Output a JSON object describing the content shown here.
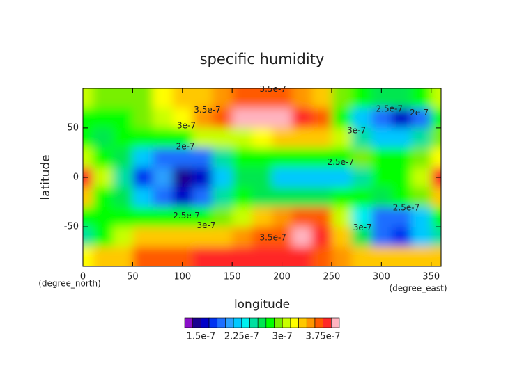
{
  "chart_data": {
    "type": "contourf",
    "title": "specific humidity",
    "xlabel": "longitude",
    "ylabel": "latitude",
    "xunit": "(degree_east)",
    "yunit": "(degree_north)",
    "xlim": [
      0,
      360
    ],
    "ylim": [
      -90,
      90
    ],
    "xticks": [
      0,
      50,
      100,
      150,
      200,
      250,
      300,
      350
    ],
    "yticks": [
      -50,
      0,
      50
    ],
    "x": [
      0,
      20,
      40,
      60,
      80,
      100,
      120,
      140,
      160,
      180,
      200,
      220,
      240,
      260,
      280,
      300,
      320,
      340,
      360
    ],
    "y": [
      80,
      60,
      40,
      20,
      0,
      -20,
      -40,
      -60,
      -80
    ],
    "values": [
      [
        3e-07,
        2.9e-07,
        2.9e-07,
        2.9e-07,
        3.2e-07,
        3.3e-07,
        3.4e-07,
        3.5e-07,
        3.6e-07,
        3.6e-07,
        3.6e-07,
        3.5e-07,
        3.4e-07,
        2.9e-07,
        2.7e-07,
        2.6e-07,
        2.6e-07,
        2.8e-07,
        3e-07
      ],
      [
        2.8e-07,
        2.7e-07,
        2.8e-07,
        2.9e-07,
        3e-07,
        3.2e-07,
        3.5e-07,
        3.7e-07,
        3.9e-07,
        4e-07,
        3.9e-07,
        3.8e-07,
        3.6e-07,
        2.8e-07,
        2.2e-07,
        1.8e-07,
        1.6e-07,
        1.9e-07,
        2.8e-07
      ],
      [
        2.7e-07,
        2.6e-07,
        2.7e-07,
        2.7e-07,
        2.8e-07,
        2.8e-07,
        3e-07,
        3.1e-07,
        3.1e-07,
        3.2e-07,
        3.3e-07,
        3.3e-07,
        3.3e-07,
        3e-07,
        2.5e-07,
        2.2e-07,
        2.1e-07,
        2.4e-07,
        2.9e-07
      ],
      [
        3.1e-07,
        2.8e-07,
        2.6e-07,
        2.2e-07,
        1.9e-07,
        1.8e-07,
        1.9e-07,
        2.5e-07,
        2.7e-07,
        2.7e-07,
        2.8e-07,
        2.8e-07,
        2.8e-07,
        2.8e-07,
        2.9e-07,
        2.7e-07,
        2.7e-07,
        2.9e-07,
        3.2e-07
      ],
      [
        3.8e-07,
        3e-07,
        2.5e-07,
        1.7e-07,
        2e-07,
        1.4e-07,
        1.5e-07,
        2.2e-07,
        2.6e-07,
        2.6e-07,
        2.2e-07,
        2.1e-07,
        2.1e-07,
        2.2e-07,
        2.5e-07,
        2.7e-07,
        2.8e-07,
        3e-07,
        3.8e-07
      ],
      [
        3.3e-07,
        2.8e-07,
        2.6e-07,
        2.1e-07,
        1.8e-07,
        1.6e-07,
        1.9e-07,
        2.4e-07,
        2.7e-07,
        2.6e-07,
        2.6e-07,
        2.6e-07,
        2.6e-07,
        2.7e-07,
        2.8e-07,
        2.6e-07,
        2.7e-07,
        2.9e-07,
        3.3e-07
      ],
      [
        2.8e-07,
        2.8e-07,
        2.8e-07,
        2.8e-07,
        2.7e-07,
        2.7e-07,
        2.8e-07,
        2.9e-07,
        3.1e-07,
        3.3e-07,
        3.5e-07,
        3.7e-07,
        3.6e-07,
        3e-07,
        2.3e-07,
        1.9e-07,
        1.8e-07,
        2.2e-07,
        2.8e-07
      ],
      [
        2.5e-07,
        2.8e-07,
        3e-07,
        3.3e-07,
        3.3e-07,
        3.3e-07,
        3.3e-07,
        3.4e-07,
        3.5e-07,
        3.6e-07,
        3.7e-07,
        3.9e-07,
        3.8e-07,
        3.4e-07,
        2.6e-07,
        1.9e-07,
        1.7e-07,
        2.1e-07,
        2.5e-07
      ],
      [
        3.2e-07,
        3.4e-07,
        3.4e-07,
        3.6e-07,
        3.7e-07,
        3.7e-07,
        3.8e-07,
        3.8e-07,
        3.8e-07,
        3.8e-07,
        3.8e-07,
        3.8e-07,
        3.7e-07,
        3.5e-07,
        3.4e-07,
        3.3e-07,
        3.3e-07,
        3.3e-07,
        3.3e-07
      ]
    ],
    "colorbar": {
      "levels": [
        1.2e-07,
        1.35e-07,
        1.5e-07,
        1.65e-07,
        1.8e-07,
        1.95e-07,
        2.1e-07,
        2.25e-07,
        2.4e-07,
        2.55e-07,
        2.7e-07,
        2.85e-07,
        3e-07,
        3.15e-07,
        3.3e-07,
        3.45e-07,
        3.6e-07,
        3.75e-07,
        3.9e-07,
        4.05e-07
      ],
      "colors": [
        "#8a10c8",
        "#1a0090",
        "#0000c8",
        "#0032f0",
        "#1e6eff",
        "#2aa0ff",
        "#00c8ff",
        "#00f0f0",
        "#00e0a0",
        "#00e650",
        "#00ff00",
        "#78f000",
        "#c8ff00",
        "#ffff00",
        "#ffc800",
        "#ff9600",
        "#ff5a00",
        "#ff2828",
        "#ffb4c0"
      ],
      "ticks": [
        1.5e-07,
        2.25e-07,
        3e-07,
        3.75e-07
      ]
    },
    "annotations": [
      {
        "text": "3.5e-7",
        "x": 191,
        "y": 89
      },
      {
        "text": "3.5e-7",
        "x": 125,
        "y": 68
      },
      {
        "text": "3e-7",
        "x": 104,
        "y": 52
      },
      {
        "text": "2e-7",
        "x": 103,
        "y": 31
      },
      {
        "text": "2.5e-7",
        "x": 259,
        "y": 15
      },
      {
        "text": "2.5e-7",
        "x": 308,
        "y": 69
      },
      {
        "text": "2e-7",
        "x": 338,
        "y": 65
      },
      {
        "text": "3e-7",
        "x": 275,
        "y": 47
      },
      {
        "text": "2.5e-7",
        "x": 104,
        "y": -39
      },
      {
        "text": "3e-7",
        "x": 124,
        "y": -49
      },
      {
        "text": "3.5e-7",
        "x": 191,
        "y": -61
      },
      {
        "text": "2.5e-7",
        "x": 325,
        "y": -31
      },
      {
        "text": "3e-7",
        "x": 281,
        "y": -51
      }
    ]
  }
}
